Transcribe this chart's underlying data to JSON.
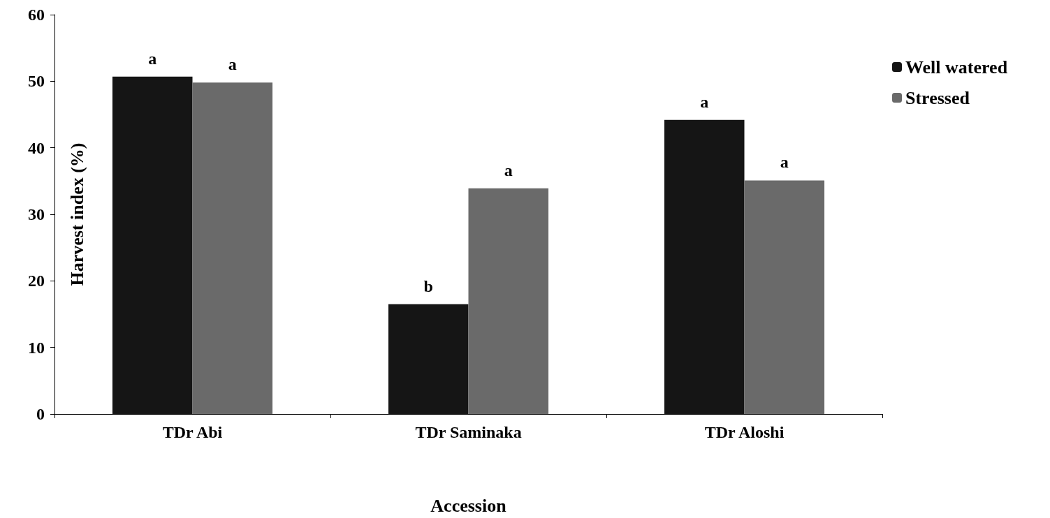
{
  "chart_data": {
    "type": "bar",
    "xlabel": "Accession",
    "ylabel": "Harvest index (%)",
    "categories": [
      "TDr Abi",
      "TDr Saminaka",
      "TDr Aloshi"
    ],
    "series": [
      {
        "name": "Well watered",
        "color": "#151515",
        "values": [
          50.7,
          16.5,
          44.2
        ]
      },
      {
        "name": "Stressed",
        "color": "#6a6a6a",
        "values": [
          49.8,
          33.9,
          35.1
        ]
      }
    ],
    "ylim": [
      0,
      60
    ],
    "yticks": [
      0,
      10,
      20,
      30,
      40,
      50,
      60
    ],
    "grid": false,
    "legend": "top right",
    "annotations": [
      {
        "text": "a",
        "x": "TDr Abi",
        "y": 50.7
      },
      {
        "text": "a",
        "x": "TDr Abi",
        "y": 49.8
      },
      {
        "text": "b",
        "x": "TDr Saminaka",
        "y": 16.5
      },
      {
        "text": "a",
        "x": "TDr Saminaka",
        "y": 33.9
      },
      {
        "text": "a",
        "x": "TDr Aloshi",
        "y": 44.2
      },
      {
        "text": "a",
        "x": "TDr Aloshi",
        "y": 35.1
      }
    ]
  }
}
